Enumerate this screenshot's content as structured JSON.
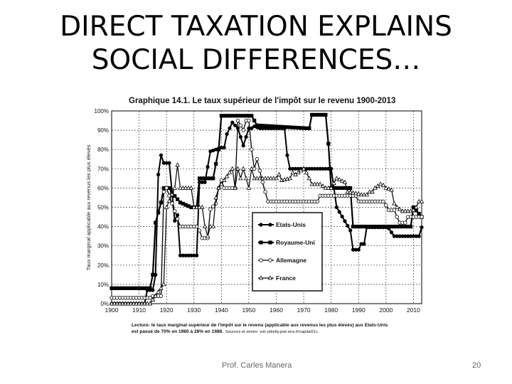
{
  "slide": {
    "title_line1": "DIRECT TAXATION EXPLAINS",
    "title_line2": "SOCIAL DIFFERENCES…",
    "footer_author": "Prof. Carles Manera",
    "page_number": "20"
  },
  "chart_data": {
    "type": "line",
    "title": "Graphique 14.1. Le taux supérieur de l'impôt sur le revenu 1900-2013",
    "ylabel": "Taux marginal applicable aux revenus les plus élevés",
    "xlabel": "",
    "xlim": [
      1900,
      2013
    ],
    "ylim": [
      0,
      1
    ],
    "xticks": [
      "1900",
      "1910",
      "1920",
      "1930",
      "1940",
      "1950",
      "1960",
      "1970",
      "1980",
      "1990",
      "2000",
      "2010"
    ],
    "yticks": [
      "0%",
      "10%",
      "20%",
      "30%",
      "40%",
      "50%",
      "60%",
      "70%",
      "80%",
      "90%",
      "100%"
    ],
    "grid": true,
    "legend_position": "center-right",
    "caption_line1": "Lecture: le taux marginal supérieur de l'impôt sur le revenu (applicable aux revenus les plus élevés) aux Etats-Unis",
    "caption_line2": "est passé de 70% en 1980 à 28% en 1988.",
    "caption_sources": "Sources et séries: voir piketty.pse.ens.fr/capital21c.",
    "series": [
      {
        "name": "Etats-Unis",
        "marker": "filled-circle",
        "points": [
          [
            1900,
            0
          ],
          [
            1912,
            0
          ],
          [
            1913,
            0.07
          ],
          [
            1915,
            0.07
          ],
          [
            1916,
            0.15
          ],
          [
            1917,
            0.67
          ],
          [
            1918,
            0.77
          ],
          [
            1919,
            0.73
          ],
          [
            1921,
            0.73
          ],
          [
            1922,
            0.58
          ],
          [
            1923,
            0.43
          ],
          [
            1924,
            0.46
          ],
          [
            1925,
            0.25
          ],
          [
            1931,
            0.25
          ],
          [
            1932,
            0.63
          ],
          [
            1934,
            0.63
          ],
          [
            1936,
            0.79
          ],
          [
            1940,
            0.81
          ],
          [
            1941,
            0.81
          ],
          [
            1942,
            0.88
          ],
          [
            1944,
            0.94
          ],
          [
            1946,
            0.91
          ],
          [
            1948,
            0.82
          ],
          [
            1950,
            0.91
          ],
          [
            1951,
            0.91
          ],
          [
            1952,
            0.92
          ],
          [
            1954,
            0.91
          ],
          [
            1963,
            0.91
          ],
          [
            1964,
            0.77
          ],
          [
            1965,
            0.7
          ],
          [
            1980,
            0.7
          ],
          [
            1982,
            0.5
          ],
          [
            1987,
            0.38
          ],
          [
            1988,
            0.28
          ],
          [
            1990,
            0.28
          ],
          [
            1991,
            0.31
          ],
          [
            1992,
            0.31
          ],
          [
            1993,
            0.396
          ],
          [
            2000,
            0.396
          ],
          [
            2001,
            0.39
          ],
          [
            2003,
            0.35
          ],
          [
            2012,
            0.35
          ],
          [
            2013,
            0.396
          ]
        ]
      },
      {
        "name": "Royaume-Uni",
        "marker": "filled-square",
        "points": [
          [
            1900,
            0.08
          ],
          [
            1909,
            0.08
          ],
          [
            1910,
            0.08
          ],
          [
            1914,
            0.08
          ],
          [
            1915,
            0.15
          ],
          [
            1916,
            0.42
          ],
          [
            1918,
            0.525
          ],
          [
            1919,
            0.6
          ],
          [
            1921,
            0.6
          ],
          [
            1922,
            0.575
          ],
          [
            1925,
            0.525
          ],
          [
            1929,
            0.5
          ],
          [
            1931,
            0.5
          ],
          [
            1932,
            0.65
          ],
          [
            1937,
            0.65
          ],
          [
            1938,
            0.725
          ],
          [
            1939,
            0.8
          ],
          [
            1940,
            0.975
          ],
          [
            1951,
            0.975
          ],
          [
            1952,
            0.95
          ],
          [
            1953,
            0.925
          ],
          [
            1971,
            0.91
          ],
          [
            1972,
            0.91
          ],
          [
            1973,
            0.98
          ],
          [
            1978,
            0.98
          ],
          [
            1979,
            0.83
          ],
          [
            1980,
            0.6
          ],
          [
            1987,
            0.6
          ],
          [
            1988,
            0.4
          ],
          [
            2009,
            0.4
          ],
          [
            2010,
            0.5
          ],
          [
            2013,
            0.45
          ]
        ]
      },
      {
        "name": "Allemagne",
        "marker": "open-circle",
        "points": [
          [
            1900,
            0.03
          ],
          [
            1910,
            0.03
          ],
          [
            1911,
            0.03
          ],
          [
            1914,
            0.03
          ],
          [
            1915,
            0.04
          ],
          [
            1918,
            0.04
          ],
          [
            1919,
            0.58
          ],
          [
            1920,
            0.6
          ],
          [
            1925,
            0.4
          ],
          [
            1931,
            0.4
          ],
          [
            1932,
            0.38
          ],
          [
            1933,
            0.34
          ],
          [
            1935,
            0.34
          ],
          [
            1936,
            0.49
          ],
          [
            1938,
            0.52
          ],
          [
            1939,
            0.6
          ],
          [
            1940,
            0.64
          ],
          [
            1941,
            0.6
          ],
          [
            1945,
            0.6
          ],
          [
            1946,
            0.95
          ],
          [
            1948,
            0.9
          ],
          [
            1949,
            0.95
          ],
          [
            1950,
            0.95
          ],
          [
            1951,
            0.8
          ],
          [
            1952,
            0.7
          ],
          [
            1953,
            0.75
          ],
          [
            1955,
            0.63
          ],
          [
            1957,
            0.53
          ],
          [
            1958,
            0.53
          ],
          [
            1975,
            0.53
          ],
          [
            1976,
            0.56
          ],
          [
            1989,
            0.56
          ],
          [
            1990,
            0.53
          ],
          [
            1999,
            0.53
          ],
          [
            2000,
            0.51
          ],
          [
            2001,
            0.485
          ],
          [
            2003,
            0.485
          ],
          [
            2004,
            0.45
          ],
          [
            2005,
            0.42
          ],
          [
            2007,
            0.42
          ],
          [
            2008,
            0.45
          ],
          [
            2013,
            0.45
          ]
        ]
      },
      {
        "name": "France",
        "marker": "open-triangle",
        "points": [
          [
            1900,
            0
          ],
          [
            1914,
            0
          ],
          [
            1915,
            0.02
          ],
          [
            1919,
            0.1
          ],
          [
            1920,
            0.5
          ],
          [
            1923,
            0.6
          ],
          [
            1924,
            0.72
          ],
          [
            1925,
            0.6
          ],
          [
            1929,
            0.6
          ],
          [
            1930,
            0.5
          ],
          [
            1933,
            0.5
          ],
          [
            1934,
            0.4
          ],
          [
            1935,
            0.35
          ],
          [
            1936,
            0.4
          ],
          [
            1937,
            0.4
          ],
          [
            1938,
            0.55
          ],
          [
            1939,
            0.6
          ],
          [
            1944,
            0.7
          ],
          [
            1945,
            0.6
          ],
          [
            1946,
            0.7
          ],
          [
            1947,
            0.65
          ],
          [
            1948,
            0.7
          ],
          [
            1950,
            0.6
          ],
          [
            1951,
            0.7
          ],
          [
            1952,
            0.65
          ],
          [
            1960,
            0.65
          ],
          [
            1961,
            0.67
          ],
          [
            1962,
            0.64
          ],
          [
            1965,
            0.65
          ],
          [
            1966,
            0.68
          ],
          [
            1967,
            0.67
          ],
          [
            1970,
            0.7
          ],
          [
            1971,
            0.68
          ],
          [
            1973,
            0.62
          ],
          [
            1976,
            0.62
          ],
          [
            1978,
            0.6
          ],
          [
            1980,
            0.6
          ],
          [
            1982,
            0.65
          ],
          [
            1985,
            0.63
          ],
          [
            1986,
            0.58
          ],
          [
            1990,
            0.57
          ],
          [
            1991,
            0.565
          ],
          [
            1993,
            0.565
          ],
          [
            1994,
            0.58
          ],
          [
            1995,
            0.58
          ],
          [
            1996,
            0.6
          ],
          [
            1998,
            0.62
          ],
          [
            1999,
            0.615
          ],
          [
            2000,
            0.6
          ],
          [
            2002,
            0.59
          ],
          [
            2003,
            0.52
          ],
          [
            2004,
            0.5
          ],
          [
            2006,
            0.48
          ],
          [
            2009,
            0.48
          ],
          [
            2010,
            0.485
          ],
          [
            2011,
            0.5
          ],
          [
            2012,
            0.53
          ],
          [
            2013,
            0.53
          ]
        ]
      }
    ]
  }
}
